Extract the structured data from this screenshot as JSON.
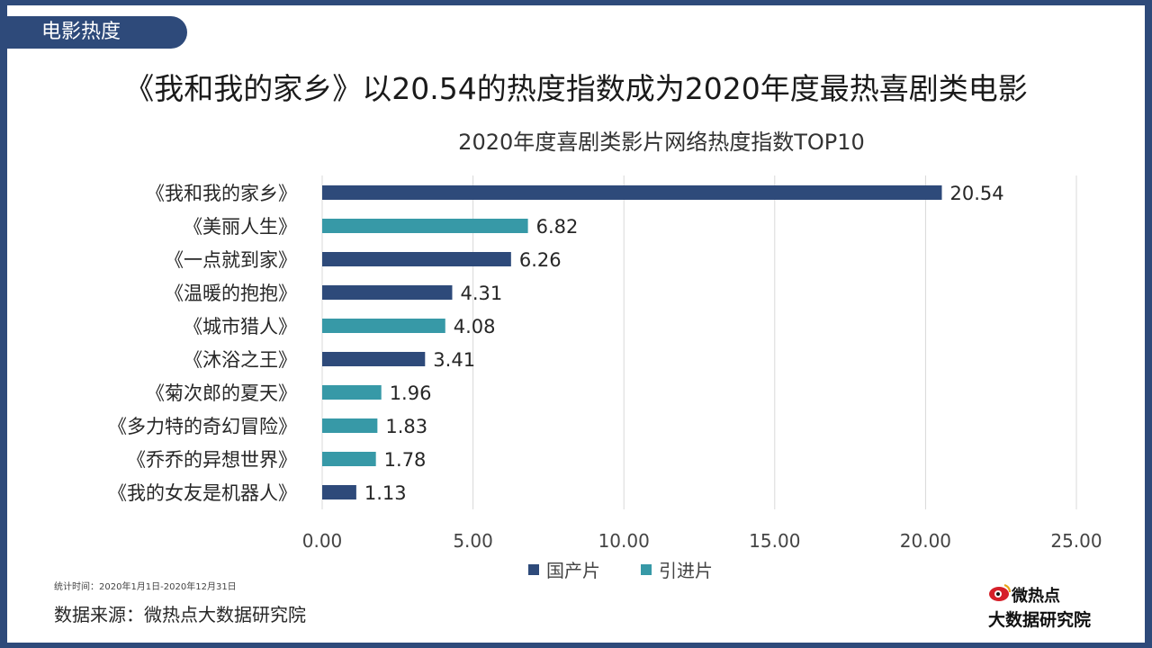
{
  "section_tab": "电影热度",
  "headline": "《我和我的家乡》以20.54的热度指数成为2020年度最热喜剧类电影",
  "footnote": "统计时间：2020年1月1日-2020年12月31日",
  "source": "数据来源：微热点大数据研究院",
  "logo": {
    "line1": "微热点",
    "line2": "大数据研究院",
    "icon": "weibo-eye-icon"
  },
  "colors": {
    "domestic": "#2e4a7a",
    "imported": "#3799a7",
    "frame": "#2e4a7a",
    "grid": "#d9d9d9"
  },
  "chart_data": {
    "type": "bar",
    "orientation": "horizontal",
    "title": "2020年度喜剧类影片网络热度指数TOP10",
    "categories": [
      "《我和我的家乡》",
      "《美丽人生》",
      "《一点就到家》",
      "《温暖的抱抱》",
      "《城市猎人》",
      "《沐浴之王》",
      "《菊次郎的夏天》",
      "《多力特的奇幻冒险》",
      "《乔乔的异想世界》",
      "《我的女友是机器人》"
    ],
    "values": [
      20.54,
      6.82,
      6.26,
      4.31,
      4.08,
      3.41,
      1.96,
      1.83,
      1.78,
      1.13
    ],
    "value_labels": [
      "20.54",
      "6.82",
      "6.26",
      "4.31",
      "4.08",
      "3.41",
      "1.96",
      "1.83",
      "1.78",
      "1.13"
    ],
    "series_of_bar": [
      "国产片",
      "引进片",
      "国产片",
      "国产片",
      "引进片",
      "国产片",
      "引进片",
      "引进片",
      "引进片",
      "国产片"
    ],
    "legend": [
      "国产片",
      "引进片"
    ],
    "xlim": [
      0,
      25
    ],
    "xticks": [
      0,
      5,
      10,
      15,
      20,
      25
    ],
    "xtick_labels": [
      "0.00",
      "5.00",
      "10.00",
      "15.00",
      "20.00",
      "25.00"
    ],
    "grid": true,
    "legend_position": "bottom-center"
  }
}
